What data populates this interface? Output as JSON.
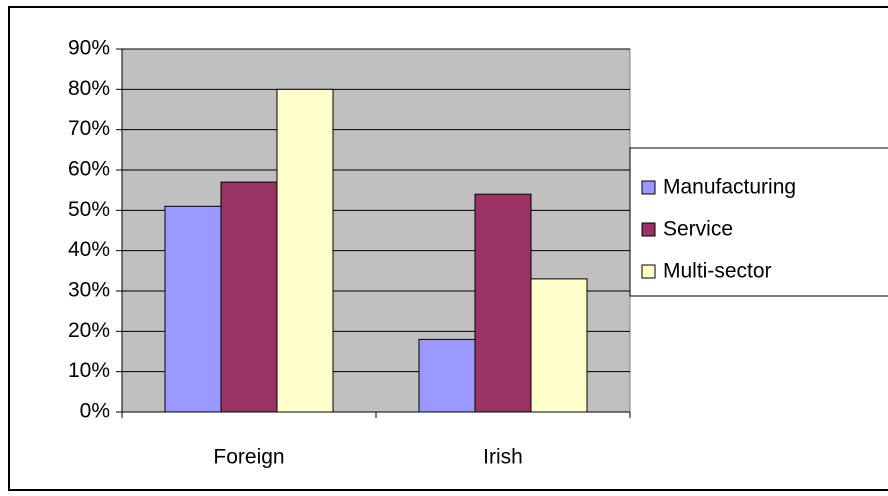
{
  "chart_data": {
    "type": "bar",
    "categories": [
      "Foreign",
      "Irish"
    ],
    "series": [
      {
        "name": "Manufacturing",
        "color": "#9999ff",
        "values": [
          51,
          18
        ]
      },
      {
        "name": "Service",
        "color": "#993366",
        "values": [
          57,
          54
        ]
      },
      {
        "name": "Multi-sector",
        "color": "#ffffcc",
        "values": [
          80,
          33
        ]
      }
    ],
    "ylim": [
      0,
      90
    ],
    "yticks": [
      {
        "value": 0,
        "label": "0%"
      },
      {
        "value": 10,
        "label": "10%"
      },
      {
        "value": 20,
        "label": "20%"
      },
      {
        "value": 30,
        "label": "30%"
      },
      {
        "value": 40,
        "label": "40%"
      },
      {
        "value": 50,
        "label": "50%"
      },
      {
        "value": 60,
        "label": "60%"
      },
      {
        "value": 70,
        "label": "70%"
      },
      {
        "value": 80,
        "label": "80%"
      },
      {
        "value": 90,
        "label": "90%"
      }
    ],
    "grid": true,
    "plot_background": "#c0c0c0",
    "legend": "right"
  }
}
